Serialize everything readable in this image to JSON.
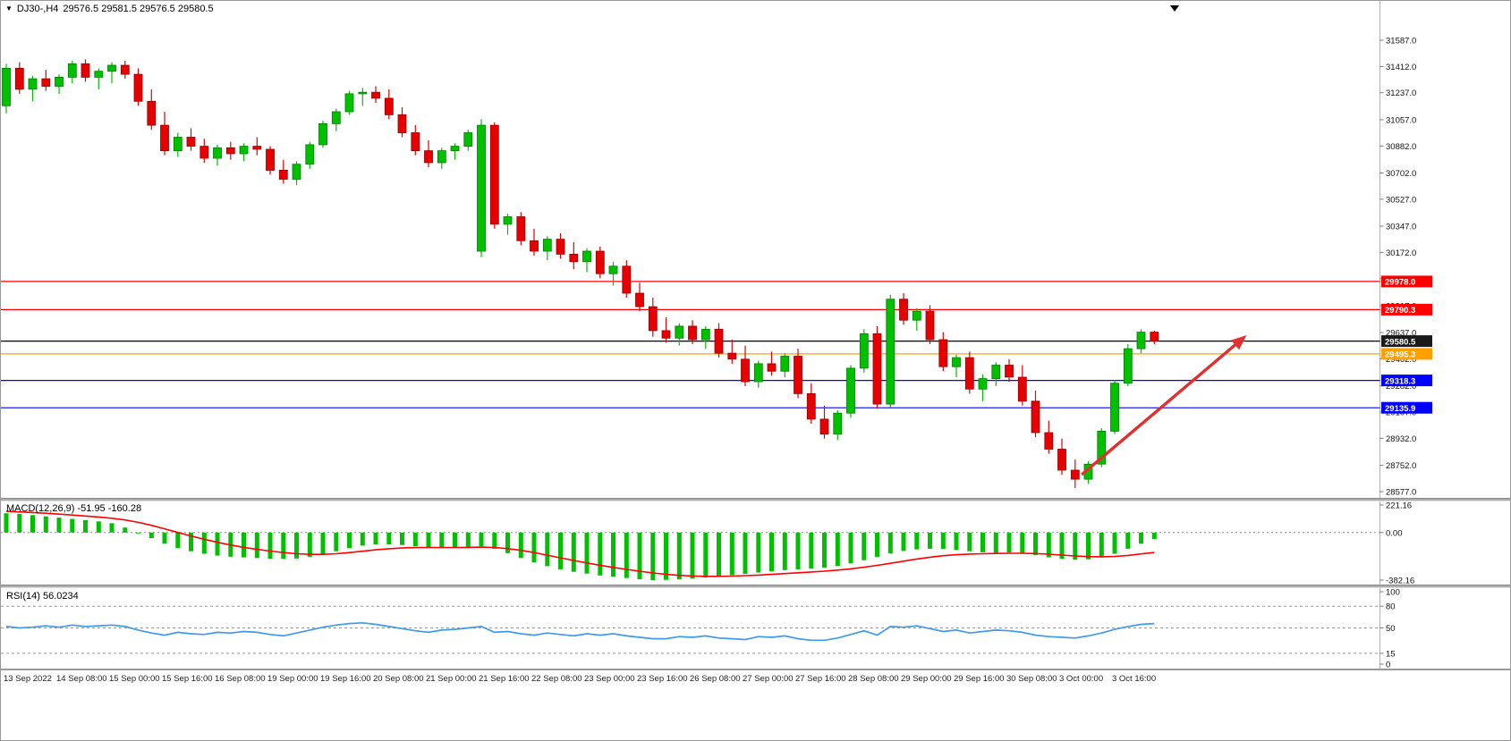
{
  "window": {
    "bg": "#ffffff",
    "border": "#9a9a9a"
  },
  "header": {
    "dropdown_icon": "▼",
    "symbol": "DJ30-,H4",
    "ohlc": "29576.5 29581.5 29576.5 29580.5"
  },
  "indicators": {
    "macd": {
      "title": "MACD(12,26,9)",
      "macd_value": "-51.95",
      "signal_value": "-160.28"
    },
    "rsi": {
      "title": "RSI(14)",
      "value": "56.0234"
    }
  },
  "chart_data": [
    {
      "type": "candlestick",
      "symbol": "DJ30-",
      "timeframe": "H4",
      "x_label_every": 4,
      "x_labels": [
        "13 Sep 2022",
        "14 Sep 08:00",
        "15 Sep 00:00",
        "15 Sep 16:00",
        "16 Sep 08:00",
        "19 Sep 00:00",
        "19 Sep 16:00",
        "20 Sep 08:00",
        "21 Sep 00:00",
        "21 Sep 16:00",
        "22 Sep 08:00",
        "23 Sep 00:00",
        "23 Sep 16:00",
        "26 Sep 08:00",
        "27 Sep 00:00",
        "27 Sep 16:00",
        "28 Sep 08:00",
        "29 Sep 00:00",
        "29 Sep 16:00",
        "30 Sep 08:00",
        "3 Oct 00:00",
        "3 Oct 16:00"
      ],
      "price_axis": {
        "min": 28535,
        "max": 31742,
        "ticks": [
          31587.0,
          31412.0,
          31237.0,
          31057.0,
          30882.0,
          30702.0,
          30527.0,
          30347.0,
          30172.0,
          29997.0,
          29817.0,
          29637.0,
          29462.0,
          29282.0,
          29107.0,
          28932.0,
          28752.0,
          28577.0
        ]
      },
      "colors": {
        "bull": "#00c000",
        "bull_border": "#007d00",
        "bear": "#e60000",
        "bear_border": "#990000"
      },
      "hlines": [
        {
          "price": 29978.0,
          "label": "29978.0",
          "color": "#ff0000",
          "label_bg": "#ff0000"
        },
        {
          "price": 29790.3,
          "label": "29790.3",
          "color": "#ff0000",
          "label_bg": "#ff0000"
        },
        {
          "price": 29580.5,
          "label": "29580.5",
          "color": "#000000",
          "label_bg": "#1a1a1a"
        },
        {
          "price": 29495.3,
          "label": "29495.3",
          "color": "#ffa000",
          "label_bg": "#ffa000"
        },
        {
          "price": 29318.3,
          "label": "29318.3",
          "color": "#0000ff",
          "label_bg": "#0000ff"
        },
        {
          "price": 29135.9,
          "label": "29135.9",
          "color": "#0000ff",
          "label_bg": "#0000ff"
        }
      ],
      "arrow": {
        "from_candle": 81.5,
        "from_price": 28690,
        "to_candle": 94,
        "to_price": 29620,
        "color": "#e03030"
      },
      "candles": [
        [
          31150,
          31430,
          31100,
          31400
        ],
        [
          31400,
          31440,
          31230,
          31260
        ],
        [
          31260,
          31350,
          31180,
          31330
        ],
        [
          31330,
          31390,
          31250,
          31280
        ],
        [
          31280,
          31360,
          31230,
          31340
        ],
        [
          31340,
          31450,
          31300,
          31430
        ],
        [
          31430,
          31460,
          31310,
          31340
        ],
        [
          31340,
          31400,
          31260,
          31380
        ],
        [
          31380,
          31440,
          31300,
          31420
        ],
        [
          31420,
          31450,
          31330,
          31360
        ],
        [
          31360,
          31400,
          31150,
          31180
        ],
        [
          31180,
          31260,
          30990,
          31020
        ],
        [
          31020,
          31110,
          30820,
          30850
        ],
        [
          30850,
          30970,
          30810,
          30940
        ],
        [
          30940,
          31000,
          30850,
          30880
        ],
        [
          30880,
          30930,
          30770,
          30800
        ],
        [
          30800,
          30890,
          30750,
          30870
        ],
        [
          30870,
          30910,
          30790,
          30830
        ],
        [
          30830,
          30900,
          30780,
          30880
        ],
        [
          30880,
          30940,
          30820,
          30860
        ],
        [
          30860,
          30880,
          30690,
          30720
        ],
        [
          30720,
          30790,
          30630,
          30660
        ],
        [
          30660,
          30780,
          30620,
          30760
        ],
        [
          30760,
          30910,
          30730,
          30890
        ],
        [
          30890,
          31050,
          30870,
          31030
        ],
        [
          31030,
          31130,
          30980,
          31110
        ],
        [
          31110,
          31250,
          31090,
          31230
        ],
        [
          31230,
          31270,
          31150,
          31240
        ],
        [
          31240,
          31280,
          31170,
          31200
        ],
        [
          31200,
          31260,
          31060,
          31090
        ],
        [
          31090,
          31140,
          30940,
          30970
        ],
        [
          30970,
          31020,
          30820,
          30850
        ],
        [
          30850,
          30920,
          30740,
          30770
        ],
        [
          30770,
          30870,
          30730,
          30850
        ],
        [
          30850,
          30900,
          30790,
          30880
        ],
        [
          30880,
          30990,
          30850,
          30970
        ],
        [
          30180,
          31060,
          30140,
          31020
        ],
        [
          31020,
          31040,
          30330,
          30360
        ],
        [
          30360,
          30430,
          30290,
          30410
        ],
        [
          30410,
          30440,
          30220,
          30250
        ],
        [
          30250,
          30330,
          30150,
          30180
        ],
        [
          30180,
          30280,
          30120,
          30260
        ],
        [
          30260,
          30300,
          30130,
          30160
        ],
        [
          30160,
          30240,
          30060,
          30110
        ],
        [
          30110,
          30200,
          30040,
          30180
        ],
        [
          30180,
          30210,
          30000,
          30030
        ],
        [
          30030,
          30110,
          29950,
          30080
        ],
        [
          30080,
          30120,
          29870,
          29900
        ],
        [
          29900,
          29970,
          29780,
          29810
        ],
        [
          29810,
          29870,
          29610,
          29650
        ],
        [
          29650,
          29740,
          29570,
          29600
        ],
        [
          29600,
          29700,
          29550,
          29680
        ],
        [
          29680,
          29720,
          29560,
          29590
        ],
        [
          29590,
          29680,
          29530,
          29660
        ],
        [
          29660,
          29700,
          29470,
          29500
        ],
        [
          29500,
          29590,
          29430,
          29460
        ],
        [
          29460,
          29550,
          29280,
          29310
        ],
        [
          29310,
          29450,
          29270,
          29430
        ],
        [
          29430,
          29510,
          29350,
          29380
        ],
        [
          29380,
          29500,
          29340,
          29480
        ],
        [
          29480,
          29530,
          29200,
          29230
        ],
        [
          29230,
          29300,
          29030,
          29060
        ],
        [
          29060,
          29150,
          28930,
          28960
        ],
        [
          28960,
          29120,
          28920,
          29100
        ],
        [
          29100,
          29420,
          29070,
          29400
        ],
        [
          29400,
          29660,
          29370,
          29630
        ],
        [
          29630,
          29680,
          29130,
          29160
        ],
        [
          29160,
          29890,
          29140,
          29860
        ],
        [
          29860,
          29900,
          29690,
          29720
        ],
        [
          29720,
          29800,
          29650,
          29780
        ],
        [
          29780,
          29820,
          29560,
          29590
        ],
        [
          29590,
          29640,
          29380,
          29410
        ],
        [
          29410,
          29490,
          29340,
          29470
        ],
        [
          29470,
          29510,
          29230,
          29260
        ],
        [
          29260,
          29360,
          29180,
          29330
        ],
        [
          29330,
          29440,
          29280,
          29420
        ],
        [
          29420,
          29460,
          29310,
          29340
        ],
        [
          29340,
          29420,
          29150,
          29180
        ],
        [
          29180,
          29250,
          28940,
          28970
        ],
        [
          28970,
          29050,
          28830,
          28860
        ],
        [
          28860,
          28930,
          28690,
          28720
        ],
        [
          28720,
          28790,
          28600,
          28660
        ],
        [
          28660,
          28780,
          28630,
          28760
        ],
        [
          28760,
          29000,
          28740,
          28980
        ],
        [
          28980,
          29320,
          28960,
          29300
        ],
        [
          29300,
          29560,
          29280,
          29530
        ],
        [
          29530,
          29660,
          29500,
          29640
        ],
        [
          29640,
          29650,
          29560,
          29580.5
        ]
      ]
    },
    {
      "type": "bar",
      "name": "MACD",
      "title": "MACD(12,26,9)",
      "macd_value": -51.95,
      "signal_value": -160.28,
      "axis": {
        "max": 221.16,
        "min": -382.16,
        "ticks": [
          221.16,
          0.0,
          -382.16
        ]
      },
      "colors": {
        "histogram": "#00c000",
        "signal": "#ff0000"
      },
      "histogram": [
        155,
        150,
        140,
        130,
        120,
        110,
        100,
        90,
        75,
        40,
        0,
        -45,
        -90,
        -125,
        -150,
        -170,
        -185,
        -195,
        -200,
        -205,
        -210,
        -212,
        -208,
        -195,
        -175,
        -150,
        -125,
        -105,
        -95,
        -95,
        -100,
        -110,
        -118,
        -122,
        -120,
        -115,
        -110,
        -130,
        -165,
        -205,
        -240,
        -270,
        -295,
        -315,
        -330,
        -345,
        -355,
        -365,
        -375,
        -382,
        -380,
        -376,
        -370,
        -362,
        -352,
        -342,
        -332,
        -322,
        -312,
        -302,
        -295,
        -290,
        -282,
        -268,
        -248,
        -222,
        -195,
        -168,
        -148,
        -135,
        -130,
        -132,
        -140,
        -150,
        -158,
        -162,
        -160,
        -165,
        -180,
        -200,
        -212,
        -218,
        -215,
        -200,
        -170,
        -130,
        -90,
        -51.95
      ],
      "signal": [
        170,
        166,
        161,
        155,
        148,
        141,
        133,
        125,
        115,
        101,
        82,
        58,
        30,
        1,
        -27,
        -54,
        -78,
        -100,
        -119,
        -135,
        -149,
        -161,
        -170,
        -175,
        -175,
        -170,
        -161,
        -150,
        -139,
        -130,
        -124,
        -121,
        -120,
        -120,
        -120,
        -119,
        -117,
        -120,
        -129,
        -143,
        -161,
        -182,
        -203,
        -224,
        -244,
        -263,
        -280,
        -296,
        -311,
        -325,
        -336,
        -344,
        -349,
        -352,
        -352,
        -350,
        -346,
        -342,
        -336,
        -330,
        -323,
        -317,
        -310,
        -302,
        -292,
        -279,
        -264,
        -247,
        -230,
        -213,
        -198,
        -186,
        -178,
        -173,
        -170,
        -168,
        -167,
        -167,
        -169,
        -174,
        -181,
        -188,
        -193,
        -195,
        -192,
        -184,
        -172,
        -160.28
      ]
    },
    {
      "type": "line",
      "name": "RSI",
      "title": "RSI(14)",
      "value": 56.0234,
      "axis": {
        "max": 100,
        "min": 0,
        "ticks": [
          100,
          80,
          50,
          15,
          0
        ],
        "levels": [
          80,
          50,
          15
        ]
      },
      "color": "#3d9be9",
      "values": [
        52,
        50,
        51,
        53,
        51,
        54,
        52,
        53,
        54,
        52,
        47,
        43,
        40,
        44,
        42,
        41,
        44,
        43,
        45,
        44,
        41,
        39,
        43,
        47,
        51,
        54,
        56,
        57,
        55,
        52,
        49,
        46,
        44,
        47,
        48,
        50,
        52,
        44,
        45,
        42,
        40,
        43,
        41,
        39,
        42,
        40,
        42,
        39,
        37,
        35,
        35,
        38,
        37,
        39,
        36,
        35,
        34,
        38,
        37,
        39,
        35,
        33,
        33,
        36,
        41,
        46,
        40,
        52,
        51,
        53,
        49,
        45,
        47,
        43,
        45,
        47,
        46,
        44,
        40,
        38,
        37,
        36,
        39,
        43,
        48,
        52,
        55,
        56.02
      ]
    }
  ]
}
